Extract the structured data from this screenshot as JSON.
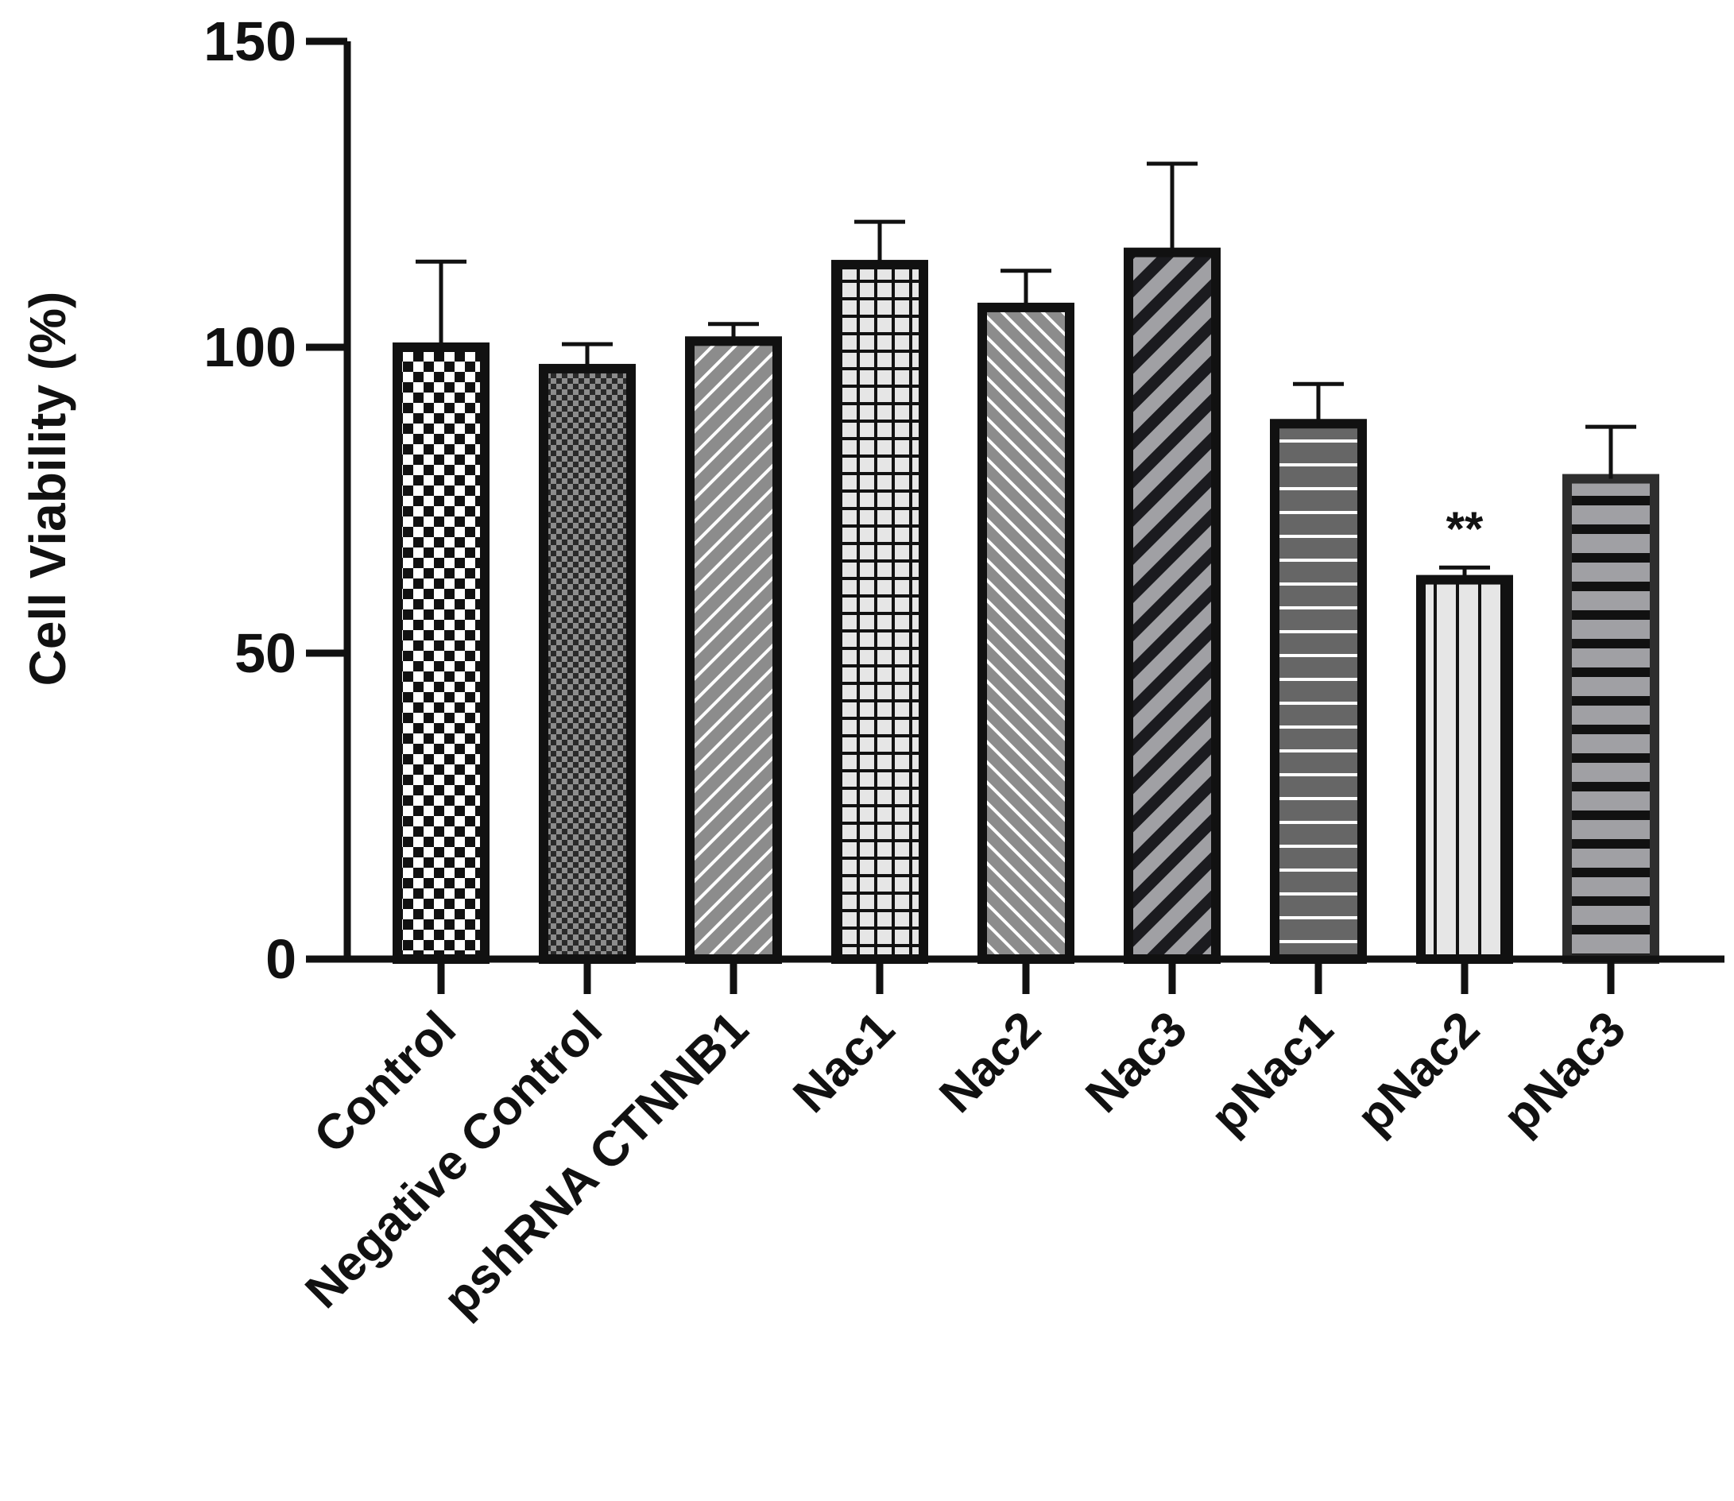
{
  "chart_data": {
    "type": "bar",
    "title": "",
    "xlabel": "",
    "ylabel": "Cell Viability (%)",
    "ylim": [
      0,
      150
    ],
    "yticks": [
      0,
      50,
      100,
      150
    ],
    "grid": false,
    "legend": "none",
    "categories": [
      "Control",
      "Negative Control",
      "pshRNA CTNNB1",
      "Nac1",
      "Nac2",
      "Nac3",
      "pNac1",
      "pNac2",
      "pNac3"
    ],
    "values": [
      100,
      96.5,
      101,
      113.5,
      106.5,
      115.5,
      87.5,
      62,
      78.5
    ],
    "error": [
      14,
      4,
      2.8,
      7,
      6,
      14.5,
      6.5,
      2,
      8.5
    ],
    "significance": [
      "",
      "",
      "",
      "",
      "",
      "",
      "",
      "**",
      ""
    ],
    "patterns": [
      "checker-large",
      "checker-small",
      "diagonal-up-white",
      "grid",
      "diagonal-down-white",
      "diagonal-up-dark",
      "horizontal-white",
      "vertical-lines",
      "horizontal-dark"
    ],
    "colors": {
      "axis": "#111111",
      "bar_edge": "#111111",
      "gray_light": "#e6e6e6",
      "gray_mid": "#8c8c8c",
      "gray_dark": "#666666",
      "gray_slate": "#a0a0a4"
    }
  }
}
